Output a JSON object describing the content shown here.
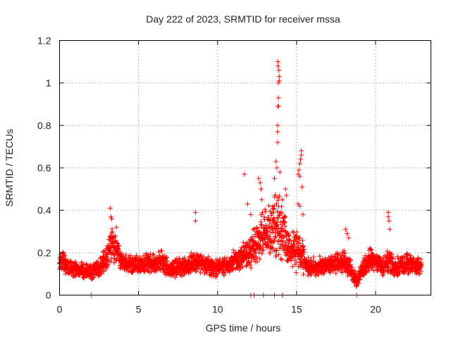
{
  "chart_data": {
    "type": "scatter",
    "title": "Day 222 of 2023, SRMTID for receiver mssa",
    "xlabel": "GPS time / hours",
    "ylabel": "SRMTID / TECUs",
    "xlim": [
      0,
      23.5
    ],
    "ylim": [
      0,
      1.2
    ],
    "x_ticks": [
      0,
      5,
      10,
      15,
      20
    ],
    "x_tick_labels": [
      "0",
      "5",
      "10",
      "15",
      "20"
    ],
    "y_ticks": [
      0,
      0.2,
      0.4,
      0.6,
      0.8,
      1.0,
      1.2
    ],
    "y_tick_labels": [
      "0",
      "0.2",
      "0.4",
      "0.6",
      "0.8",
      "1",
      "1.2"
    ],
    "grid": true,
    "marker": "+",
    "series": [
      {
        "name": "SRMTID",
        "color": "#ff0000",
        "sampling_hours": 0.0167,
        "profile": {
          "x": [
            0,
            0.5,
            1,
            1.5,
            2,
            2.5,
            3,
            3.3,
            3.6,
            4,
            4.5,
            5,
            5.5,
            6,
            6.5,
            7,
            7.5,
            8,
            8.6,
            9,
            9.5,
            10,
            10.5,
            11,
            11.5,
            12,
            12.5,
            13,
            13.5,
            13.8,
            14,
            14.3,
            14.6,
            15,
            15.3,
            15.6,
            16,
            16.5,
            17,
            17.5,
            18,
            18.4,
            18.8,
            19.2,
            19.6,
            20,
            20.5,
            20.8,
            21.2,
            21.6,
            22,
            22.5,
            22.9
          ],
          "y": [
            0.16,
            0.14,
            0.12,
            0.12,
            0.11,
            0.13,
            0.18,
            0.25,
            0.21,
            0.15,
            0.14,
            0.14,
            0.15,
            0.15,
            0.16,
            0.12,
            0.13,
            0.14,
            0.16,
            0.15,
            0.14,
            0.13,
            0.14,
            0.16,
            0.18,
            0.2,
            0.24,
            0.3,
            0.3,
            0.34,
            0.3,
            0.26,
            0.2,
            0.22,
            0.2,
            0.14,
            0.13,
            0.14,
            0.14,
            0.15,
            0.16,
            0.12,
            0.07,
            0.12,
            0.17,
            0.16,
            0.13,
            0.17,
            0.13,
            0.14,
            0.15,
            0.14,
            0.14
          ],
          "spread": [
            0.06,
            0.05,
            0.04,
            0.04,
            0.04,
            0.05,
            0.07,
            0.09,
            0.07,
            0.05,
            0.05,
            0.05,
            0.05,
            0.05,
            0.06,
            0.04,
            0.05,
            0.05,
            0.06,
            0.05,
            0.05,
            0.05,
            0.05,
            0.06,
            0.07,
            0.09,
            0.1,
            0.13,
            0.16,
            0.2,
            0.15,
            0.12,
            0.09,
            0.12,
            0.1,
            0.05,
            0.05,
            0.05,
            0.05,
            0.05,
            0.06,
            0.05,
            0.04,
            0.05,
            0.06,
            0.05,
            0.05,
            0.07,
            0.05,
            0.05,
            0.05,
            0.05,
            0.05
          ]
        },
        "spikes": [
          [
            3.2,
            0.41
          ],
          [
            3.25,
            0.37
          ],
          [
            3.3,
            0.36
          ],
          [
            3.6,
            0.32
          ],
          [
            8.6,
            0.39
          ],
          [
            8.6,
            0.35
          ],
          [
            11.7,
            0.57
          ],
          [
            11.9,
            0.43
          ],
          [
            12.1,
            0.38
          ],
          [
            12.6,
            0.55
          ],
          [
            12.7,
            0.53
          ],
          [
            12.75,
            0.5
          ],
          [
            12.8,
            0.45
          ],
          [
            13.6,
            0.55
          ],
          [
            13.7,
            0.63
          ],
          [
            13.75,
            0.6
          ],
          [
            13.8,
            0.72
          ],
          [
            13.8,
            0.77
          ],
          [
            13.8,
            0.8
          ],
          [
            13.82,
            0.89
          ],
          [
            13.85,
            0.89
          ],
          [
            13.85,
            0.93
          ],
          [
            13.85,
            1.0
          ],
          [
            13.9,
            1.01
          ],
          [
            13.9,
            1.03
          ],
          [
            13.82,
            1.08
          ],
          [
            13.82,
            1.1
          ],
          [
            13.88,
            1.06
          ],
          [
            13.95,
            0.58
          ],
          [
            14.3,
            0.5
          ],
          [
            14.35,
            0.47
          ],
          [
            14.1,
            0.45
          ],
          [
            15.1,
            0.57
          ],
          [
            15.15,
            0.59
          ],
          [
            15.2,
            0.62
          ],
          [
            15.25,
            0.64
          ],
          [
            15.3,
            0.66
          ],
          [
            15.3,
            0.68
          ],
          [
            15.2,
            0.56
          ],
          [
            15.35,
            0.51
          ],
          [
            15.1,
            0.43
          ],
          [
            15.2,
            0.42
          ],
          [
            15.4,
            0.38
          ],
          [
            18.1,
            0.31
          ],
          [
            18.2,
            0.29
          ],
          [
            18.3,
            0.27
          ],
          [
            20.8,
            0.39
          ],
          [
            20.8,
            0.37
          ],
          [
            20.85,
            0.35
          ],
          [
            20.9,
            0.31
          ]
        ],
        "zeros": [
          2.0,
          12.1,
          12.3,
          12.9,
          13.6,
          14.1,
          18.8
        ]
      }
    ]
  }
}
